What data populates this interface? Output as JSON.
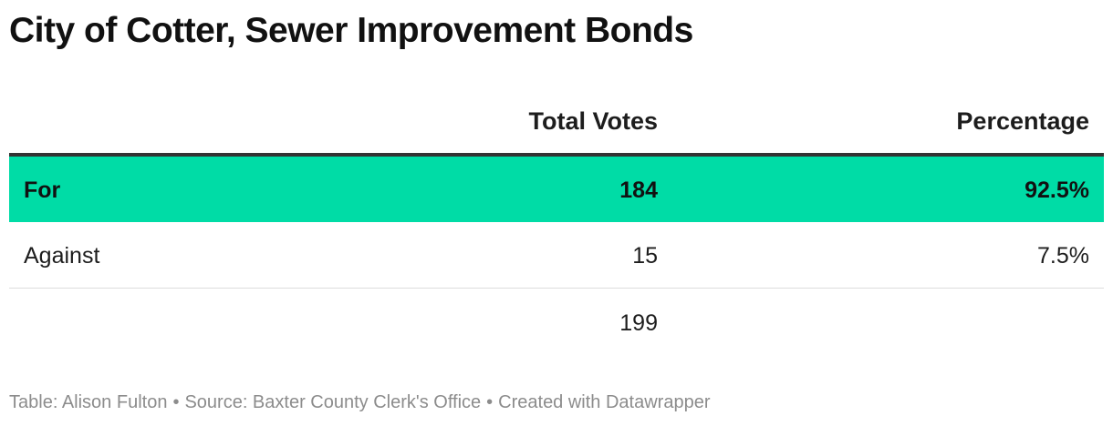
{
  "title": "City of Cotter, Sewer Improvement Bonds",
  "chart_data": {
    "type": "table",
    "title": "City of Cotter, Sewer Improvement Bonds",
    "columns": [
      "",
      "Total Votes",
      "Percentage"
    ],
    "rows": [
      {
        "label": "For",
        "votes": "184",
        "percentage": "92.5%",
        "highlighted": true
      },
      {
        "label": "Against",
        "votes": "15",
        "percentage": "7.5%",
        "highlighted": false
      }
    ],
    "total": {
      "votes": "199"
    },
    "highlight_color": "#00dca6"
  },
  "footer": {
    "table_credit": "Table: Alison Fulton",
    "source": "Source: Baxter County Clerk's Office",
    "created_with": "Created with Datawrapper",
    "separator": "•"
  }
}
